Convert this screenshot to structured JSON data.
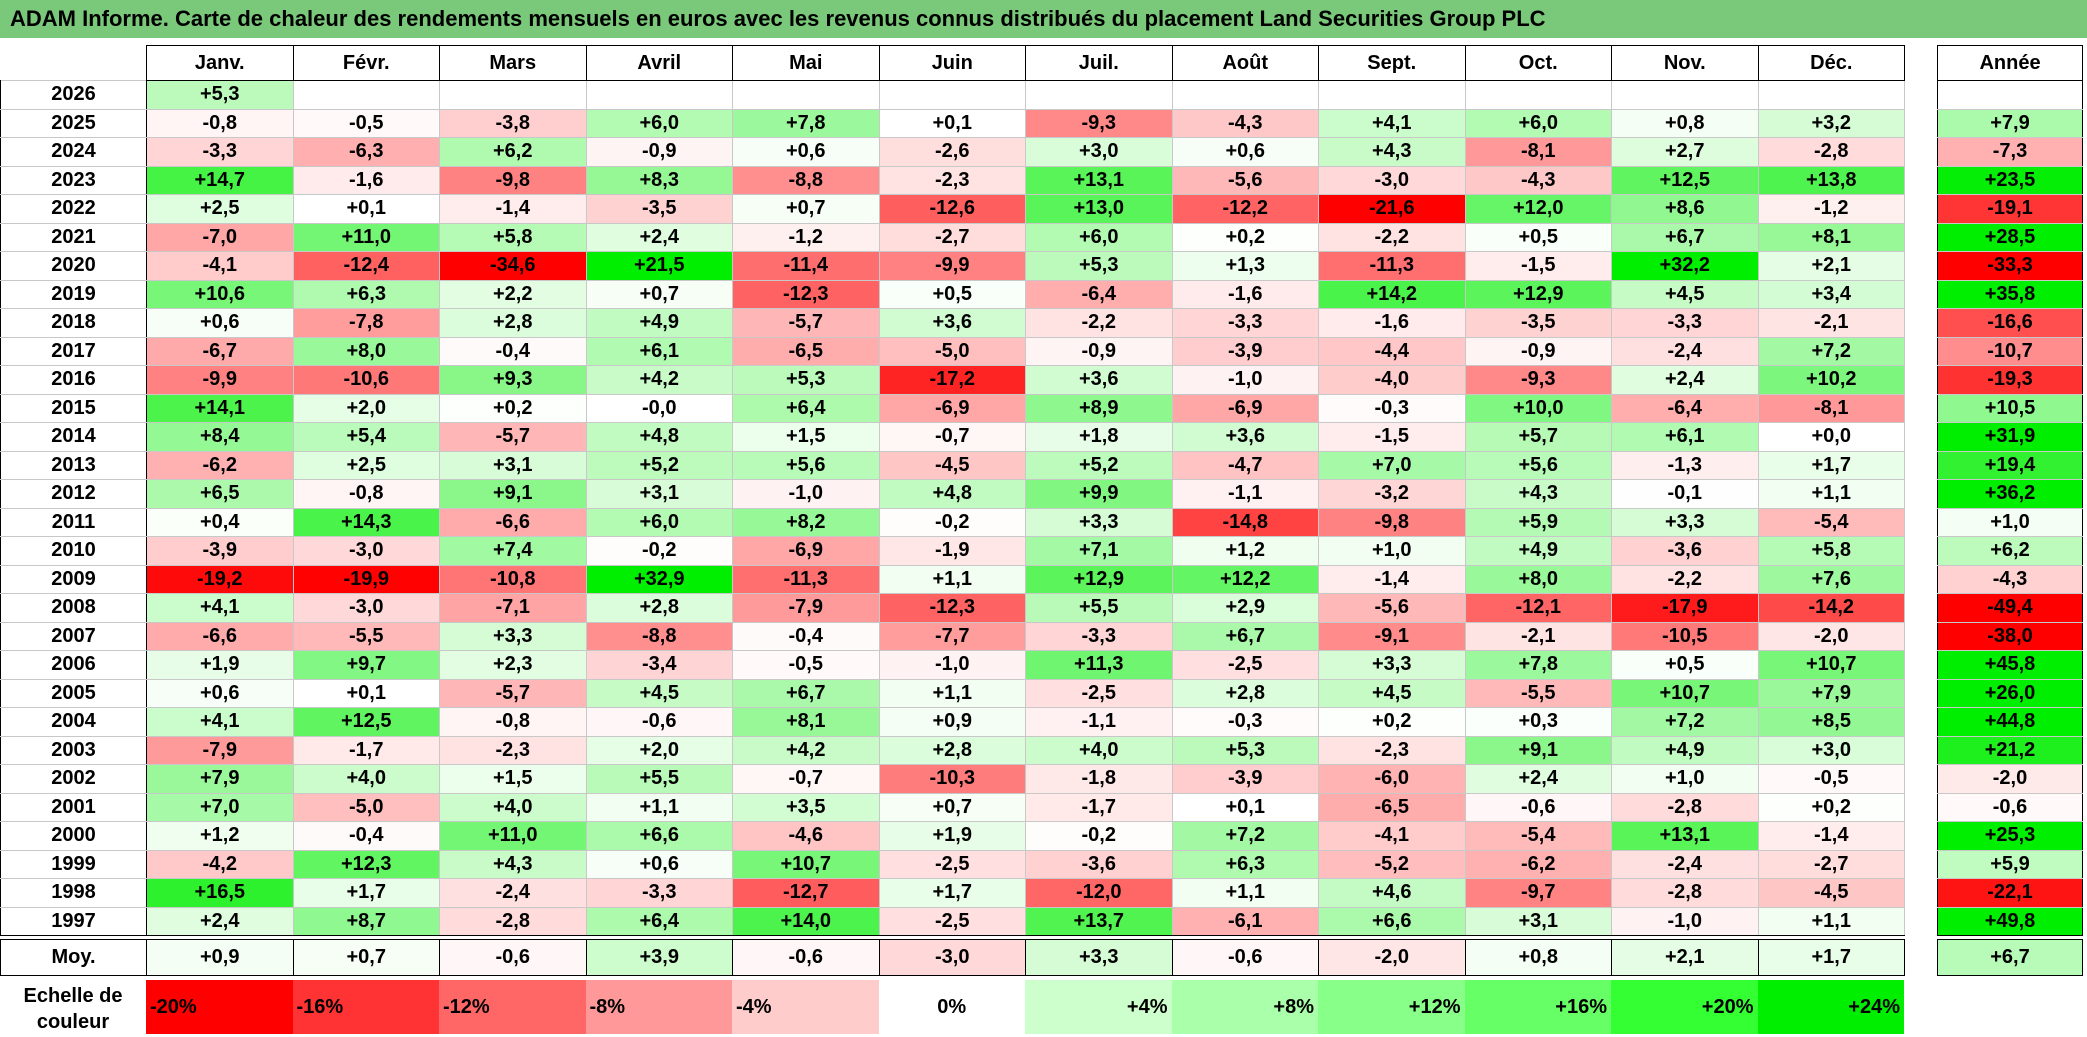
{
  "title": "ADAM Informe. Carte de chaleur des rendements mensuels en euros avec les revenus connus distribués du placement Land Securities Group PLC",
  "chart_data": {
    "type": "heatmap",
    "columns": [
      "Janv.",
      "Févr.",
      "Mars",
      "Avril",
      "Mai",
      "Juin",
      "Juil.",
      "Août",
      "Sept.",
      "Oct.",
      "Nov.",
      "Déc."
    ],
    "year_header": "Année",
    "rows": [
      {
        "year": "2026",
        "months": [
          "+5,3",
          "",
          "",
          "",
          "",
          "",
          "",
          "",
          "",
          "",
          "",
          ""
        ],
        "annual": ""
      },
      {
        "year": "2025",
        "months": [
          "-0,8",
          "-0,5",
          "-3,8",
          "+6,0",
          "+7,8",
          "+0,1",
          "-9,3",
          "-4,3",
          "+4,1",
          "+6,0",
          "+0,8",
          "+3,2"
        ],
        "annual": "+7,9"
      },
      {
        "year": "2024",
        "months": [
          "-3,3",
          "-6,3",
          "+6,2",
          "-0,9",
          "+0,6",
          "-2,6",
          "+3,0",
          "+0,6",
          "+4,3",
          "-8,1",
          "+2,7",
          "-2,8"
        ],
        "annual": "-7,3"
      },
      {
        "year": "2023",
        "months": [
          "+14,7",
          "-1,6",
          "-9,8",
          "+8,3",
          "-8,8",
          "-2,3",
          "+13,1",
          "-5,6",
          "-3,0",
          "-4,3",
          "+12,5",
          "+13,8"
        ],
        "annual": "+23,5"
      },
      {
        "year": "2022",
        "months": [
          "+2,5",
          "+0,1",
          "-1,4",
          "-3,5",
          "+0,7",
          "-12,6",
          "+13,0",
          "-12,2",
          "-21,6",
          "+12,0",
          "+8,6",
          "-1,2"
        ],
        "annual": "-19,1"
      },
      {
        "year": "2021",
        "months": [
          "-7,0",
          "+11,0",
          "+5,8",
          "+2,4",
          "-1,2",
          "-2,7",
          "+6,0",
          "+0,2",
          "-2,2",
          "+0,5",
          "+6,7",
          "+8,1"
        ],
        "annual": "+28,5"
      },
      {
        "year": "2020",
        "months": [
          "-4,1",
          "-12,4",
          "-34,6",
          "+21,5",
          "-11,4",
          "-9,9",
          "+5,3",
          "+1,3",
          "-11,3",
          "-1,5",
          "+32,2",
          "+2,1"
        ],
        "annual": "-33,3"
      },
      {
        "year": "2019",
        "months": [
          "+10,6",
          "+6,3",
          "+2,2",
          "+0,7",
          "-12,3",
          "+0,5",
          "-6,4",
          "-1,6",
          "+14,2",
          "+12,9",
          "+4,5",
          "+3,4"
        ],
        "annual": "+35,8"
      },
      {
        "year": "2018",
        "months": [
          "+0,6",
          "-7,8",
          "+2,8",
          "+4,9",
          "-5,7",
          "+3,6",
          "-2,2",
          "-3,3",
          "-1,6",
          "-3,5",
          "-3,3",
          "-2,1"
        ],
        "annual": "-16,6"
      },
      {
        "year": "2017",
        "months": [
          "-6,7",
          "+8,0",
          "-0,4",
          "+6,1",
          "-6,5",
          "-5,0",
          "-0,9",
          "-3,9",
          "-4,4",
          "-0,9",
          "-2,4",
          "+7,2"
        ],
        "annual": "-10,7"
      },
      {
        "year": "2016",
        "months": [
          "-9,9",
          "-10,6",
          "+9,3",
          "+4,2",
          "+5,3",
          "-17,2",
          "+3,6",
          "-1,0",
          "-4,0",
          "-9,3",
          "+2,4",
          "+10,2"
        ],
        "annual": "-19,3"
      },
      {
        "year": "2015",
        "months": [
          "+14,1",
          "+2,0",
          "+0,2",
          "-0,0",
          "+6,4",
          "-6,9",
          "+8,9",
          "-6,9",
          "-0,3",
          "+10,0",
          "-6,4",
          "-8,1"
        ],
        "annual": "+10,5"
      },
      {
        "year": "2014",
        "months": [
          "+8,4",
          "+5,4",
          "-5,7",
          "+4,8",
          "+1,5",
          "-0,7",
          "+1,8",
          "+3,6",
          "-1,5",
          "+5,7",
          "+6,1",
          "+0,0"
        ],
        "annual": "+31,9"
      },
      {
        "year": "2013",
        "months": [
          "-6,2",
          "+2,5",
          "+3,1",
          "+5,2",
          "+5,6",
          "-4,5",
          "+5,2",
          "-4,7",
          "+7,0",
          "+5,6",
          "-1,3",
          "+1,7"
        ],
        "annual": "+19,4"
      },
      {
        "year": "2012",
        "months": [
          "+6,5",
          "-0,8",
          "+9,1",
          "+3,1",
          "-1,0",
          "+4,8",
          "+9,9",
          "-1,1",
          "-3,2",
          "+4,3",
          "-0,1",
          "+1,1"
        ],
        "annual": "+36,2"
      },
      {
        "year": "2011",
        "months": [
          "+0,4",
          "+14,3",
          "-6,6",
          "+6,0",
          "+8,2",
          "-0,2",
          "+3,3",
          "-14,8",
          "-9,8",
          "+5,9",
          "+3,3",
          "-5,4"
        ],
        "annual": "+1,0"
      },
      {
        "year": "2010",
        "months": [
          "-3,9",
          "-3,0",
          "+7,4",
          "-0,2",
          "-6,9",
          "-1,9",
          "+7,1",
          "+1,2",
          "+1,0",
          "+4,9",
          "-3,6",
          "+5,8"
        ],
        "annual": "+6,2"
      },
      {
        "year": "2009",
        "months": [
          "-19,2",
          "-19,9",
          "-10,8",
          "+32,9",
          "-11,3",
          "+1,1",
          "+12,9",
          "+12,2",
          "-1,4",
          "+8,0",
          "-2,2",
          "+7,6"
        ],
        "annual": "-4,3"
      },
      {
        "year": "2008",
        "months": [
          "+4,1",
          "-3,0",
          "-7,1",
          "+2,8",
          "-7,9",
          "-12,3",
          "+5,5",
          "+2,9",
          "-5,6",
          "-12,1",
          "-17,9",
          "-14,2"
        ],
        "annual": "-49,4"
      },
      {
        "year": "2007",
        "months": [
          "-6,6",
          "-5,5",
          "+3,3",
          "-8,8",
          "-0,4",
          "-7,7",
          "-3,3",
          "+6,7",
          "-9,1",
          "-2,1",
          "-10,5",
          "-2,0"
        ],
        "annual": "-38,0"
      },
      {
        "year": "2006",
        "months": [
          "+1,9",
          "+9,7",
          "+2,3",
          "-3,4",
          "-0,5",
          "-1,0",
          "+11,3",
          "-2,5",
          "+3,3",
          "+7,8",
          "+0,5",
          "+10,7"
        ],
        "annual": "+45,8"
      },
      {
        "year": "2005",
        "months": [
          "+0,6",
          "+0,1",
          "-5,7",
          "+4,5",
          "+6,7",
          "+1,1",
          "-2,5",
          "+2,8",
          "+4,5",
          "-5,5",
          "+10,7",
          "+7,9"
        ],
        "annual": "+26,0"
      },
      {
        "year": "2004",
        "months": [
          "+4,1",
          "+12,5",
          "-0,8",
          "-0,6",
          "+8,1",
          "+0,9",
          "-1,1",
          "-0,3",
          "+0,2",
          "+0,3",
          "+7,2",
          "+8,5"
        ],
        "annual": "+44,8"
      },
      {
        "year": "2003",
        "months": [
          "-7,9",
          "-1,7",
          "-2,3",
          "+2,0",
          "+4,2",
          "+2,8",
          "+4,0",
          "+5,3",
          "-2,3",
          "+9,1",
          "+4,9",
          "+3,0"
        ],
        "annual": "+21,2"
      },
      {
        "year": "2002",
        "months": [
          "+7,9",
          "+4,0",
          "+1,5",
          "+5,5",
          "-0,7",
          "-10,3",
          "-1,8",
          "-3,9",
          "-6,0",
          "+2,4",
          "+1,0",
          "-0,5"
        ],
        "annual": "-2,0"
      },
      {
        "year": "2001",
        "months": [
          "+7,0",
          "-5,0",
          "+4,0",
          "+1,1",
          "+3,5",
          "+0,7",
          "-1,7",
          "+0,1",
          "-6,5",
          "-0,6",
          "-2,8",
          "+0,2"
        ],
        "annual": "-0,6"
      },
      {
        "year": "2000",
        "months": [
          "+1,2",
          "-0,4",
          "+11,0",
          "+6,6",
          "-4,6",
          "+1,9",
          "-0,2",
          "+7,2",
          "-4,1",
          "-5,4",
          "+13,1",
          "-1,4"
        ],
        "annual": "+25,3"
      },
      {
        "year": "1999",
        "months": [
          "-4,2",
          "+12,3",
          "+4,3",
          "+0,6",
          "+10,7",
          "-2,5",
          "-3,6",
          "+6,3",
          "-5,2",
          "-6,2",
          "-2,4",
          "-2,7"
        ],
        "annual": "+5,9"
      },
      {
        "year": "1998",
        "months": [
          "+16,5",
          "+1,7",
          "-2,4",
          "-3,3",
          "-12,7",
          "+1,7",
          "-12,0",
          "+1,1",
          "+4,6",
          "-9,7",
          "-2,8",
          "-4,5"
        ],
        "annual": "-22,1"
      },
      {
        "year": "1997",
        "months": [
          "+2,4",
          "+8,7",
          "-2,8",
          "+6,4",
          "+14,0",
          "-2,5",
          "+13,7",
          "-6,1",
          "+6,6",
          "+3,1",
          "-1,0",
          "+1,1"
        ],
        "annual": "+49,8"
      }
    ],
    "average": {
      "label": "Moy.",
      "months": [
        "+0,9",
        "+0,7",
        "-0,6",
        "+3,9",
        "-0,6",
        "-3,0",
        "+3,3",
        "-0,6",
        "-2,0",
        "+0,8",
        "+2,1",
        "+1,7"
      ],
      "annual": "+6,7"
    },
    "legend": {
      "label": "Echelle de couleur",
      "items": [
        {
          "text": "-20%",
          "value": -20,
          "color": "#ff0000",
          "align": "left"
        },
        {
          "text": "-16%",
          "value": -16,
          "color": "#ff3333",
          "align": "left"
        },
        {
          "text": "-12%",
          "value": -12,
          "color": "#ff6666",
          "align": "left"
        },
        {
          "text": "-8%",
          "value": -8,
          "color": "#ff9999",
          "align": "left"
        },
        {
          "text": "-4%",
          "value": -4,
          "color": "#ffcccc",
          "align": "left"
        },
        {
          "text": "0%",
          "value": 0,
          "color": "#ffffff",
          "align": "center"
        },
        {
          "text": "+4%",
          "value": 4,
          "color": "#ccffcc",
          "align": "right"
        },
        {
          "text": "+8%",
          "value": 8,
          "color": "#aaffaa",
          "align": "right"
        },
        {
          "text": "+12%",
          "value": 12,
          "color": "#88ff88",
          "align": "right"
        },
        {
          "text": "+16%",
          "value": 16,
          "color": "#66ff66",
          "align": "right"
        },
        {
          "text": "+20%",
          "value": 20,
          "color": "#33ff33",
          "align": "right"
        },
        {
          "text": "+24%",
          "value": 24,
          "color": "#00ee00",
          "align": "right"
        }
      ]
    }
  }
}
